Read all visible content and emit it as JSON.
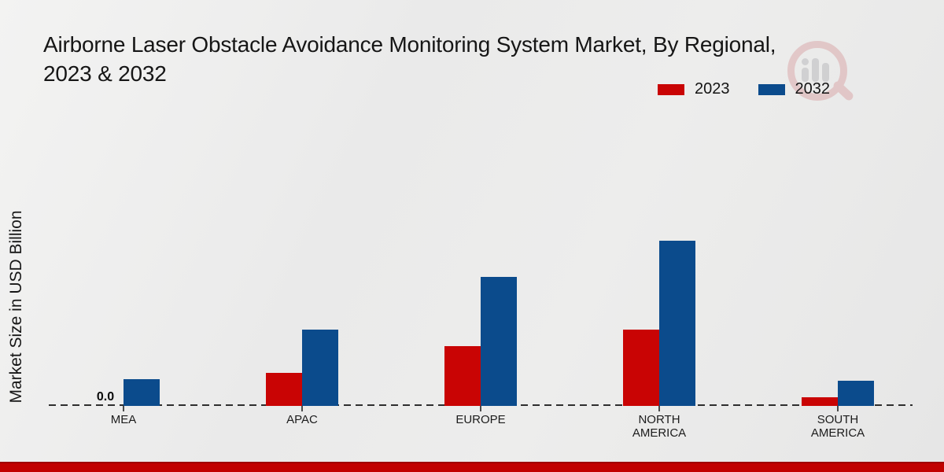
{
  "title": {
    "line1": "Airborne Laser Obstacle Avoidance Monitoring System Market, By Regional,",
    "line2": "2023 & 2032"
  },
  "y_axis_label": "Market Size in USD Billion",
  "legend": {
    "position": "top-right",
    "items": [
      {
        "label": "2023",
        "color": "#c90404"
      },
      {
        "label": "2032",
        "color": "#0b4b8c"
      }
    ]
  },
  "watermark_icon": "magnifier-bar-chart-logo",
  "chart_data": {
    "type": "bar",
    "categories": [
      "MEA",
      "APAC",
      "EUROPE",
      "NORTH AMERICA",
      "SOUTH AMERICA"
    ],
    "series": [
      {
        "name": "2023",
        "color": "#c90404",
        "values": [
          0.0,
          1.0,
          1.8,
          2.3,
          0.25
        ]
      },
      {
        "name": "2032",
        "color": "#0b4b8c",
        "values": [
          0.8,
          2.3,
          3.9,
          5.0,
          0.75
        ]
      }
    ],
    "title": "Airborne Laser Obstacle Avoidance Monitoring System Market, By Regional, 2023 & 2032",
    "xlabel": "",
    "ylabel": "Market Size in USD Billion",
    "ylim": [
      0,
      5.5
    ],
    "grid": false,
    "legend_position": "top-right",
    "baseline_style": "dashed",
    "annotations": [
      {
        "series": 0,
        "category_index": 0,
        "text": "0.0"
      }
    ]
  },
  "colors": {
    "bar_2023": "#c90404",
    "bar_2032": "#0b4b8c",
    "footer_banner": "#c10101",
    "background": "#e9e9e9",
    "text": "#161616"
  }
}
